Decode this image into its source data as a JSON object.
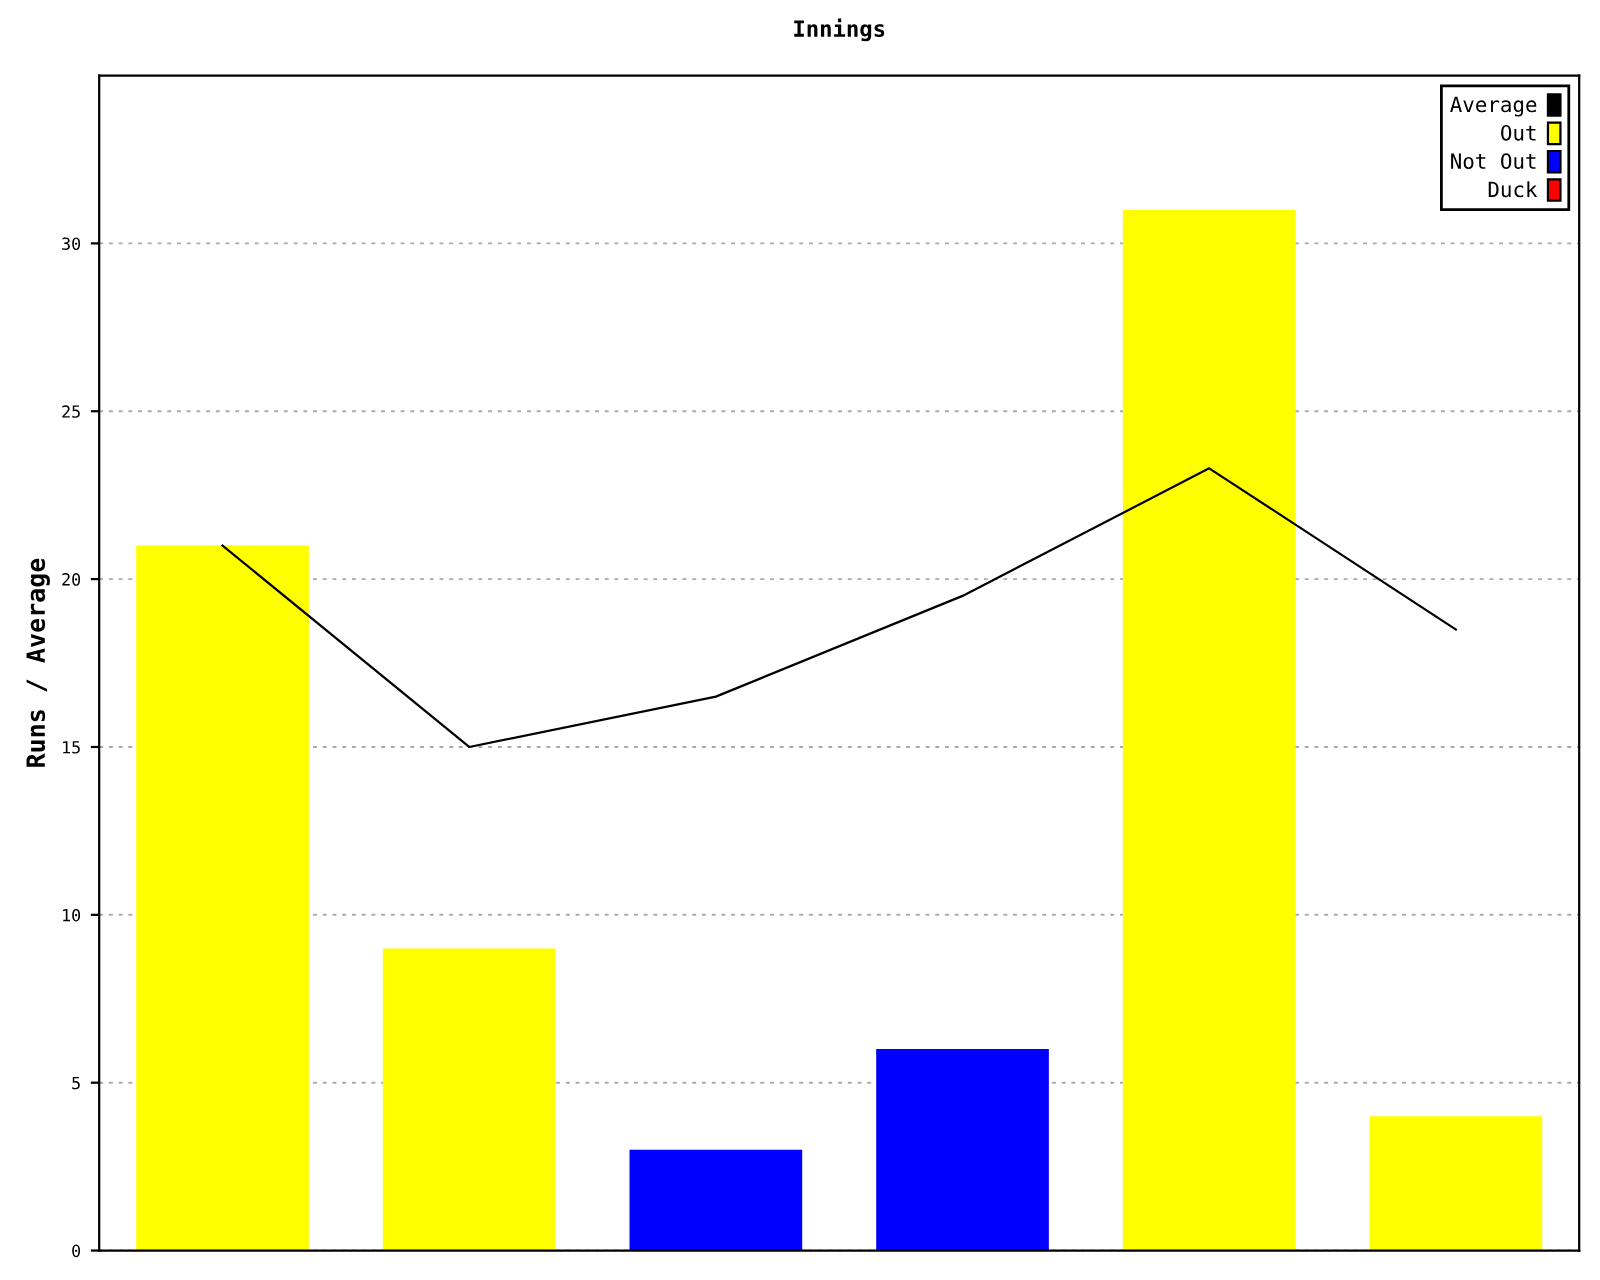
{
  "chart_data": {
    "type": "bar",
    "title": "Innings",
    "ylabel": "Runs / Average",
    "categories": [
      null,
      null,
      null,
      null,
      null,
      null
    ],
    "series": [
      {
        "name": "Average",
        "type": "line",
        "color": "#000000",
        "values": [
          21,
          15,
          16.5,
          19.5,
          23.3,
          18.5
        ]
      },
      {
        "name": "Out",
        "color": "#ffff00",
        "values": [
          21,
          9,
          null,
          null,
          31,
          4
        ]
      },
      {
        "name": "Not Out",
        "color": "#0000ff",
        "values": [
          null,
          null,
          3,
          6,
          null,
          null
        ]
      },
      {
        "name": "Duck",
        "color": "#ff0000",
        "values": [
          null,
          null,
          null,
          null,
          null,
          null
        ]
      }
    ],
    "ylim": [
      0,
      35
    ],
    "yticks": [
      0,
      5,
      10,
      15,
      20,
      25,
      30
    ],
    "grid": "y",
    "legend": "top right",
    "marker": "none",
    "line_style": "solid"
  }
}
